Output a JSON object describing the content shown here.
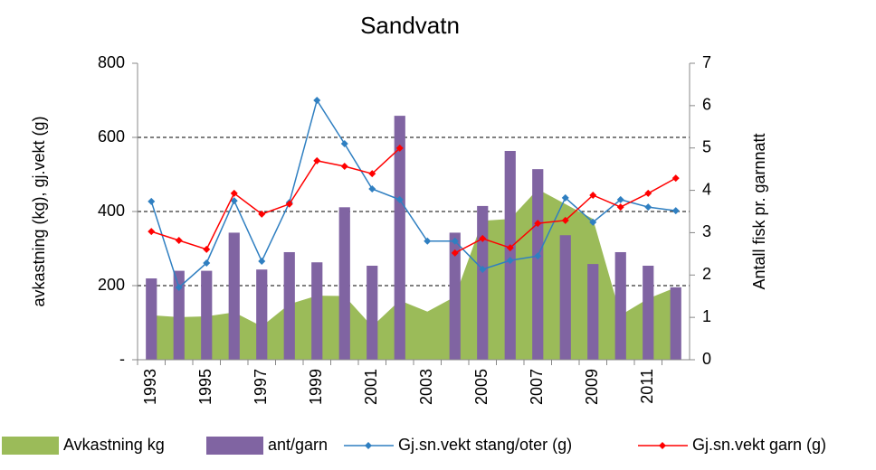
{
  "chart_data": {
    "type": "combo",
    "title": "Sandvatn",
    "y_label": "avkastning (kg),  gj.vekt (g)",
    "y2_label": "Antall fisk pr. garnnatt",
    "categories": [
      "1993",
      null,
      "1995",
      null,
      "1997",
      null,
      "1999",
      null,
      "2001",
      null,
      "2003",
      null,
      "2005",
      null,
      "2007",
      null,
      "2009",
      null,
      "2011",
      null
    ],
    "ylim": [
      0,
      800
    ],
    "yticks": [
      {
        "value": 0,
        "label": "-"
      },
      200,
      400,
      600,
      800
    ],
    "y2lim": [
      0,
      7
    ],
    "y2ticks": [
      0,
      1,
      2,
      3,
      4,
      5,
      6,
      7
    ],
    "grid": true,
    "legend": "bottom",
    "series": [
      {
        "name": "Avkastning kg",
        "type": "area",
        "color": "#9bbb59",
        "values": [
          120,
          115,
          117,
          128,
          90,
          150,
          173,
          172,
          90,
          160,
          130,
          170,
          375,
          380,
          460,
          420,
          380,
          120,
          165,
          195
        ]
      },
      {
        "name": "ant/garn",
        "type": "bar",
        "axis": "y2",
        "color": "#8064a2",
        "values": [
          1.92,
          2.1,
          2.1,
          3.0,
          2.13,
          2.54,
          2.3,
          3.6,
          2.22,
          5.76,
          null,
          3.0,
          3.63,
          4.93,
          4.5,
          2.94,
          2.26,
          2.54,
          2.22,
          1.71
        ]
      },
      {
        "name": "Gj.sn.vekt stang/oter (g)",
        "type": "line",
        "color": "#2f7fc1",
        "values": [
          427,
          195,
          261,
          429,
          266,
          424,
          700,
          583,
          461,
          432,
          320,
          320,
          244,
          268,
          280,
          437,
          371,
          432,
          412,
          402
        ]
      },
      {
        "name": "Gj.sn.vekt garn (g)",
        "type": "line",
        "color": "#ff0000",
        "values": [
          346,
          322,
          298,
          449,
          393,
          420,
          537,
          522,
          502,
          571,
          null,
          288,
          327,
          302,
          368,
          376,
          444,
          412,
          449,
          490
        ]
      }
    ]
  }
}
